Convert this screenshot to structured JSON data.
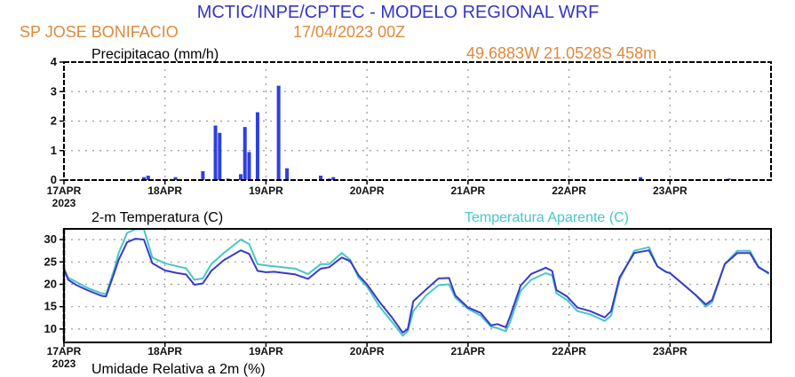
{
  "header": {
    "title": "MCTIC/INPE/CPTEC - MODELO REGIONAL WRF",
    "station": "SP JOSE BONIFACIO",
    "run": "17/04/2023 00Z",
    "location": "49.6883W 21.0528S 458m"
  },
  "colors": {
    "title": "#3535c8",
    "orange": "#e0893a",
    "temp": "#3a3ac8",
    "apparent": "#48c6c6",
    "bars": "#2f3fe0"
  },
  "chart_data": [
    {
      "type": "bar",
      "title": "Precipitacao (mm/h)",
      "xlabel": "",
      "ylabel": "mm/h",
      "xunit": "hours since 17APR2023 00Z",
      "xlim": [
        0,
        168
      ],
      "ylim": [
        0,
        4
      ],
      "yticks": [
        0,
        1,
        2,
        3,
        4
      ],
      "xticks": [
        "17APR",
        "18APR",
        "19APR",
        "20APR",
        "21APR",
        "22APR",
        "23APR"
      ],
      "year_label": "2023",
      "grid": true,
      "x": [
        19,
        20,
        26.5,
        33,
        36,
        37,
        39,
        42,
        43,
        44,
        46,
        51,
        53,
        61,
        63,
        64,
        137,
        158
      ],
      "values": [
        0.1,
        0.15,
        0.1,
        0.3,
        1.85,
        1.6,
        0.05,
        0.2,
        1.8,
        0.95,
        2.3,
        3.2,
        0.4,
        0.15,
        0.05,
        0.1,
        0.1,
        0.05
      ]
    },
    {
      "type": "line",
      "title": "2-m Temperatura (C)",
      "xunit": "hours since 17APR2023 00Z",
      "xlim": [
        0,
        168
      ],
      "ylim": [
        7,
        32.4
      ],
      "yticks": [
        10,
        15,
        20,
        25,
        30
      ],
      "xticks": [
        "17APR",
        "18APR",
        "19APR",
        "20APR",
        "21APR",
        "22APR",
        "23APR"
      ],
      "year_label": "2023",
      "grid": true,
      "legend": "top-right",
      "x": [
        0,
        1,
        3,
        6,
        9,
        10,
        12,
        13,
        15,
        17,
        19,
        21,
        24,
        27,
        29,
        31,
        33,
        35,
        38,
        42,
        44,
        46,
        48,
        50,
        55,
        58,
        61,
        63,
        66,
        68,
        70,
        72,
        75,
        78,
        80.5,
        81.7,
        83,
        86,
        89,
        91.5,
        93,
        96,
        99,
        101.5,
        103,
        105,
        106,
        108.5,
        111,
        114.5,
        116,
        117,
        119.5,
        122,
        125,
        128.5,
        130,
        132,
        135.5,
        139,
        141,
        143,
        144,
        150,
        152.5,
        154,
        157,
        160,
        163,
        165,
        167.5
      ],
      "series": [
        {
          "name": "2-m Temperatura (C)",
          "values": [
            23.5,
            21,
            19.8,
            18.5,
            17.4,
            17.3,
            22.7,
            25.5,
            29.4,
            30.2,
            30,
            24.7,
            23.1,
            22.5,
            22.2,
            19.9,
            20.2,
            23,
            25.4,
            27.6,
            26.8,
            23,
            22.7,
            22.8,
            22.2,
            21.2,
            23.5,
            23.8,
            26,
            25.2,
            22,
            20,
            16,
            12.5,
            9.2,
            10,
            16.2,
            18.8,
            21.3,
            21.4,
            17.5,
            14.8,
            13.6,
            10.8,
            11.1,
            10.4,
            12.8,
            19.7,
            22.3,
            23.7,
            23,
            18.7,
            17.3,
            14.8,
            14,
            12.6,
            14,
            21.5,
            27,
            27.6,
            24,
            22.8,
            22.5,
            17.7,
            15.5,
            16.5,
            24.5,
            27,
            27,
            23.8,
            22.5
          ]
        },
        {
          "name": "Temperatura Aparente (C)",
          "values": [
            23.5,
            21.5,
            20.5,
            19,
            18,
            17.8,
            23.5,
            27,
            31.5,
            32.3,
            32.3,
            26,
            24.7,
            24,
            23.6,
            21,
            21.3,
            24.5,
            27,
            30,
            29,
            24.5,
            24.2,
            24,
            23.5,
            22.3,
            24.5,
            24.5,
            27,
            25.5,
            21.5,
            19.5,
            15,
            11.5,
            8.5,
            9.5,
            14,
            17.5,
            19.8,
            20,
            17,
            14.5,
            13,
            10.5,
            10.2,
            9.5,
            11.5,
            18.5,
            21,
            22.5,
            22,
            18,
            16.5,
            14,
            13.3,
            11.8,
            13,
            21,
            27.5,
            28.3,
            24,
            22.8,
            22.5,
            17.7,
            15,
            16,
            24.5,
            27.5,
            27.5,
            24,
            22.3
          ]
        }
      ]
    }
  ],
  "next_panel_title": "Umidade Relativa a 2m (%)"
}
